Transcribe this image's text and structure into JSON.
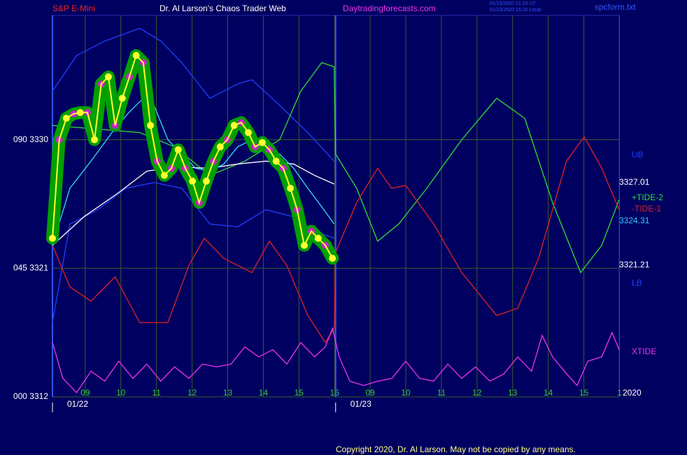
{
  "chart_data": {
    "type": "line",
    "title": "Dr. Al Larson's Chaos Trader Web",
    "symbol": "S&P E-Mini",
    "site": "Daytradingforecasts.com",
    "timestamps": [
      "01/23/2020 21:20 UT",
      "01/23/2020 15:20 Local"
    ],
    "file": "spcform.txt",
    "year": "2020",
    "copyright": "Copyright 2020, Dr. Al Larson. May not be copied by any means.",
    "sessions": [
      "01/22",
      "01/23"
    ],
    "grid": true,
    "background": "#000060",
    "xlim": [
      -0.92,
      14.99
    ],
    "xticks": [
      {
        "value": 0,
        "label": "09"
      },
      {
        "value": 1,
        "label": "10"
      },
      {
        "value": 2,
        "label": "11"
      },
      {
        "value": 3,
        "label": "12"
      },
      {
        "value": 4,
        "label": "13"
      },
      {
        "value": 5,
        "label": "14"
      },
      {
        "value": 6,
        "label": "15"
      },
      {
        "value": 7,
        "label": "16"
      },
      {
        "value": 8,
        "label": "09"
      },
      {
        "value": 9,
        "label": "10"
      },
      {
        "value": 10,
        "label": "11"
      },
      {
        "value": 11,
        "label": "12"
      },
      {
        "value": 12,
        "label": "13"
      },
      {
        "value": 13,
        "label": "14"
      },
      {
        "value": 14,
        "label": "15"
      },
      {
        "value": 15,
        "label": "1"
      }
    ],
    "ylim": [
      3312,
      3338.7
    ],
    "yticks": [
      {
        "value": 3312,
        "label": "000 3312"
      },
      {
        "value": 3321,
        "label": "045 3321"
      },
      {
        "value": 3330,
        "label": "090 3330"
      }
    ],
    "price_levels": [
      3327.01,
      3324.31,
      3321.21
    ],
    "price_level_colors": [
      "#ffffff",
      "#33ccff",
      "#ffffff"
    ],
    "series": [
      {
        "name": "UB",
        "color": "#1f3fff",
        "x": [
          -0.92,
          -0.24,
          0.55,
          1.53,
          2.12,
          2.71,
          3.5,
          4.28,
          4.68,
          5.46,
          6.25,
          6.99
        ],
        "values": [
          3333.4,
          3335.9,
          3336.9,
          3337.8,
          3336.9,
          3335.4,
          3332.9,
          3333.9,
          3334.2,
          3332.4,
          3330.5,
          3328.5
        ]
      },
      {
        "name": "LB",
        "color": "#1f3fff",
        "x": [
          -0.92,
          -0.43,
          0.35,
          1.14,
          1.93,
          2.71,
          3.5,
          4.28,
          5.07,
          5.85,
          6.44,
          6.99
        ],
        "values": [
          3317.2,
          3324.1,
          3325.1,
          3326.6,
          3327.0,
          3326.6,
          3324.1,
          3323.9,
          3325.1,
          3324.6,
          3323.6,
          3323.1
        ]
      },
      {
        "name": "+TIDE-2",
        "color": "#33dd33",
        "x": [
          -0.92,
          1.53,
          2.51,
          3.5,
          4.48,
          5.46,
          6.05,
          6.64,
          6.99,
          7.03,
          7.62,
          8.21,
          8.8,
          9.59,
          10.57,
          11.55,
          12.34,
          13.12,
          13.91,
          14.5,
          14.99
        ],
        "values": [
          3331.0,
          3330.5,
          3329.5,
          3327.5,
          3328.5,
          3330.0,
          3333.4,
          3335.4,
          3335.1,
          3329.0,
          3326.6,
          3322.9,
          3324.1,
          3326.6,
          3330.0,
          3332.9,
          3331.5,
          3325.6,
          3320.7,
          3322.6,
          3325.8
        ]
      },
      {
        "name": "-TIDE-1",
        "color": "#dd2222",
        "x": [
          -0.92,
          -0.43,
          0.16,
          0.84,
          1.53,
          2.32,
          2.91,
          3.34,
          3.89,
          4.68,
          5.17,
          5.66,
          6.25,
          6.74,
          6.99,
          7.03,
          7.62,
          8.21,
          8.6,
          9.0,
          9.78,
          10.57,
          11.55,
          12.14,
          12.73,
          13.51,
          14.01,
          14.5,
          14.99
        ],
        "values": [
          3322.6,
          3319.7,
          3318.7,
          3320.4,
          3317.2,
          3317.2,
          3321.2,
          3323.1,
          3321.7,
          3320.7,
          3322.9,
          3321.2,
          3317.7,
          3315.8,
          3316.8,
          3322.1,
          3325.6,
          3328.0,
          3326.6,
          3326.8,
          3324.1,
          3320.7,
          3317.7,
          3318.2,
          3321.7,
          3328.5,
          3330.2,
          3328.0,
          3325.1
        ]
      },
      {
        "name": "XTIDE",
        "color": "#ee33ee",
        "x": [
          -0.92,
          -0.63,
          -0.24,
          0.16,
          0.55,
          0.94,
          1.34,
          1.73,
          2.12,
          2.51,
          2.91,
          3.3,
          3.69,
          4.09,
          4.48,
          4.87,
          5.27,
          5.66,
          6.05,
          6.44,
          6.74,
          6.94,
          7.13,
          7.43,
          7.82,
          8.21,
          8.61,
          9.0,
          9.39,
          9.78,
          10.18,
          10.57,
          10.96,
          11.36,
          11.75,
          12.14,
          12.53,
          12.83,
          13.12,
          13.52,
          13.81,
          14.11,
          14.5,
          14.79,
          14.99
        ],
        "values": [
          3315.8,
          3313.3,
          3312.3,
          3313.8,
          3313.1,
          3314.5,
          3313.3,
          3314.3,
          3313.1,
          3314.1,
          3313.3,
          3314.3,
          3314.1,
          3314.3,
          3315.5,
          3314.8,
          3315.3,
          3314.3,
          3315.8,
          3314.8,
          3315.5,
          3316.8,
          3314.8,
          3313.1,
          3312.8,
          3313.1,
          3313.3,
          3314.5,
          3313.3,
          3313.1,
          3314.3,
          3313.3,
          3314.1,
          3313.1,
          3313.6,
          3314.8,
          3313.8,
          3316.3,
          3314.8,
          3313.6,
          3312.8,
          3314.5,
          3314.8,
          3316.5,
          3315.3
        ]
      },
      {
        "color": "#ffffff",
        "x": [
          -0.92,
          -0.04,
          0.94,
          1.73,
          2.52,
          3.5,
          4.28,
          5.07,
          5.85,
          6.44,
          6.99
        ],
        "values": [
          3322.6,
          3324.6,
          3326.3,
          3327.8,
          3328.1,
          3328.0,
          3328.3,
          3328.5,
          3328.3,
          3327.5,
          3326.9
        ]
      },
      {
        "color": "#33ddee",
        "x": [
          -0.92,
          -0.43,
          0.16,
          0.75,
          1.24,
          1.63,
          1.93,
          2.32,
          2.71,
          3.1,
          3.5,
          3.89,
          4.28,
          4.68,
          5.07,
          5.46,
          5.85,
          6.25,
          6.64,
          6.99
        ],
        "values": [
          3322.6,
          3326.6,
          3328.5,
          3330.5,
          3331.95,
          3332.9,
          3332.4,
          3330.0,
          3329.0,
          3328.0,
          3327.8,
          3328.3,
          3329.5,
          3330.0,
          3329.4,
          3329.0,
          3328.0,
          3326.6,
          3325.3,
          3324.1
        ]
      },
      {
        "color": "#ffff33",
        "glow_color": "#00a000",
        "dot_colors": [
          "#ffff33",
          "#cc22cc"
        ],
        "x": [
          -0.92,
          -0.73,
          -0.53,
          -0.33,
          -0.14,
          0.06,
          0.26,
          0.45,
          0.65,
          0.84,
          1.04,
          1.24,
          1.43,
          1.63,
          1.83,
          2.02,
          2.22,
          2.42,
          2.61,
          2.81,
          3.01,
          3.2,
          3.4,
          3.6,
          3.79,
          3.99,
          4.18,
          4.38,
          4.58,
          4.77,
          4.97,
          5.17,
          5.36,
          5.56,
          5.76,
          5.95,
          6.15,
          6.35,
          6.54,
          6.74,
          6.94
        ],
        "values": [
          3323.1,
          3330.0,
          3331.5,
          3331.8,
          3331.9,
          3331.9,
          3330.0,
          3333.9,
          3334.4,
          3331.0,
          3332.9,
          3334.4,
          3335.9,
          3335.4,
          3331.0,
          3328.5,
          3327.5,
          3328.0,
          3329.3,
          3328.0,
          3327.1,
          3325.6,
          3327.1,
          3328.5,
          3329.5,
          3330.0,
          3331.0,
          3331.2,
          3330.5,
          3329.5,
          3329.8,
          3329.3,
          3328.5,
          3328.0,
          3326.6,
          3325.1,
          3322.6,
          3323.6,
          3323.1,
          3322.6,
          3321.7
        ]
      }
    ]
  }
}
